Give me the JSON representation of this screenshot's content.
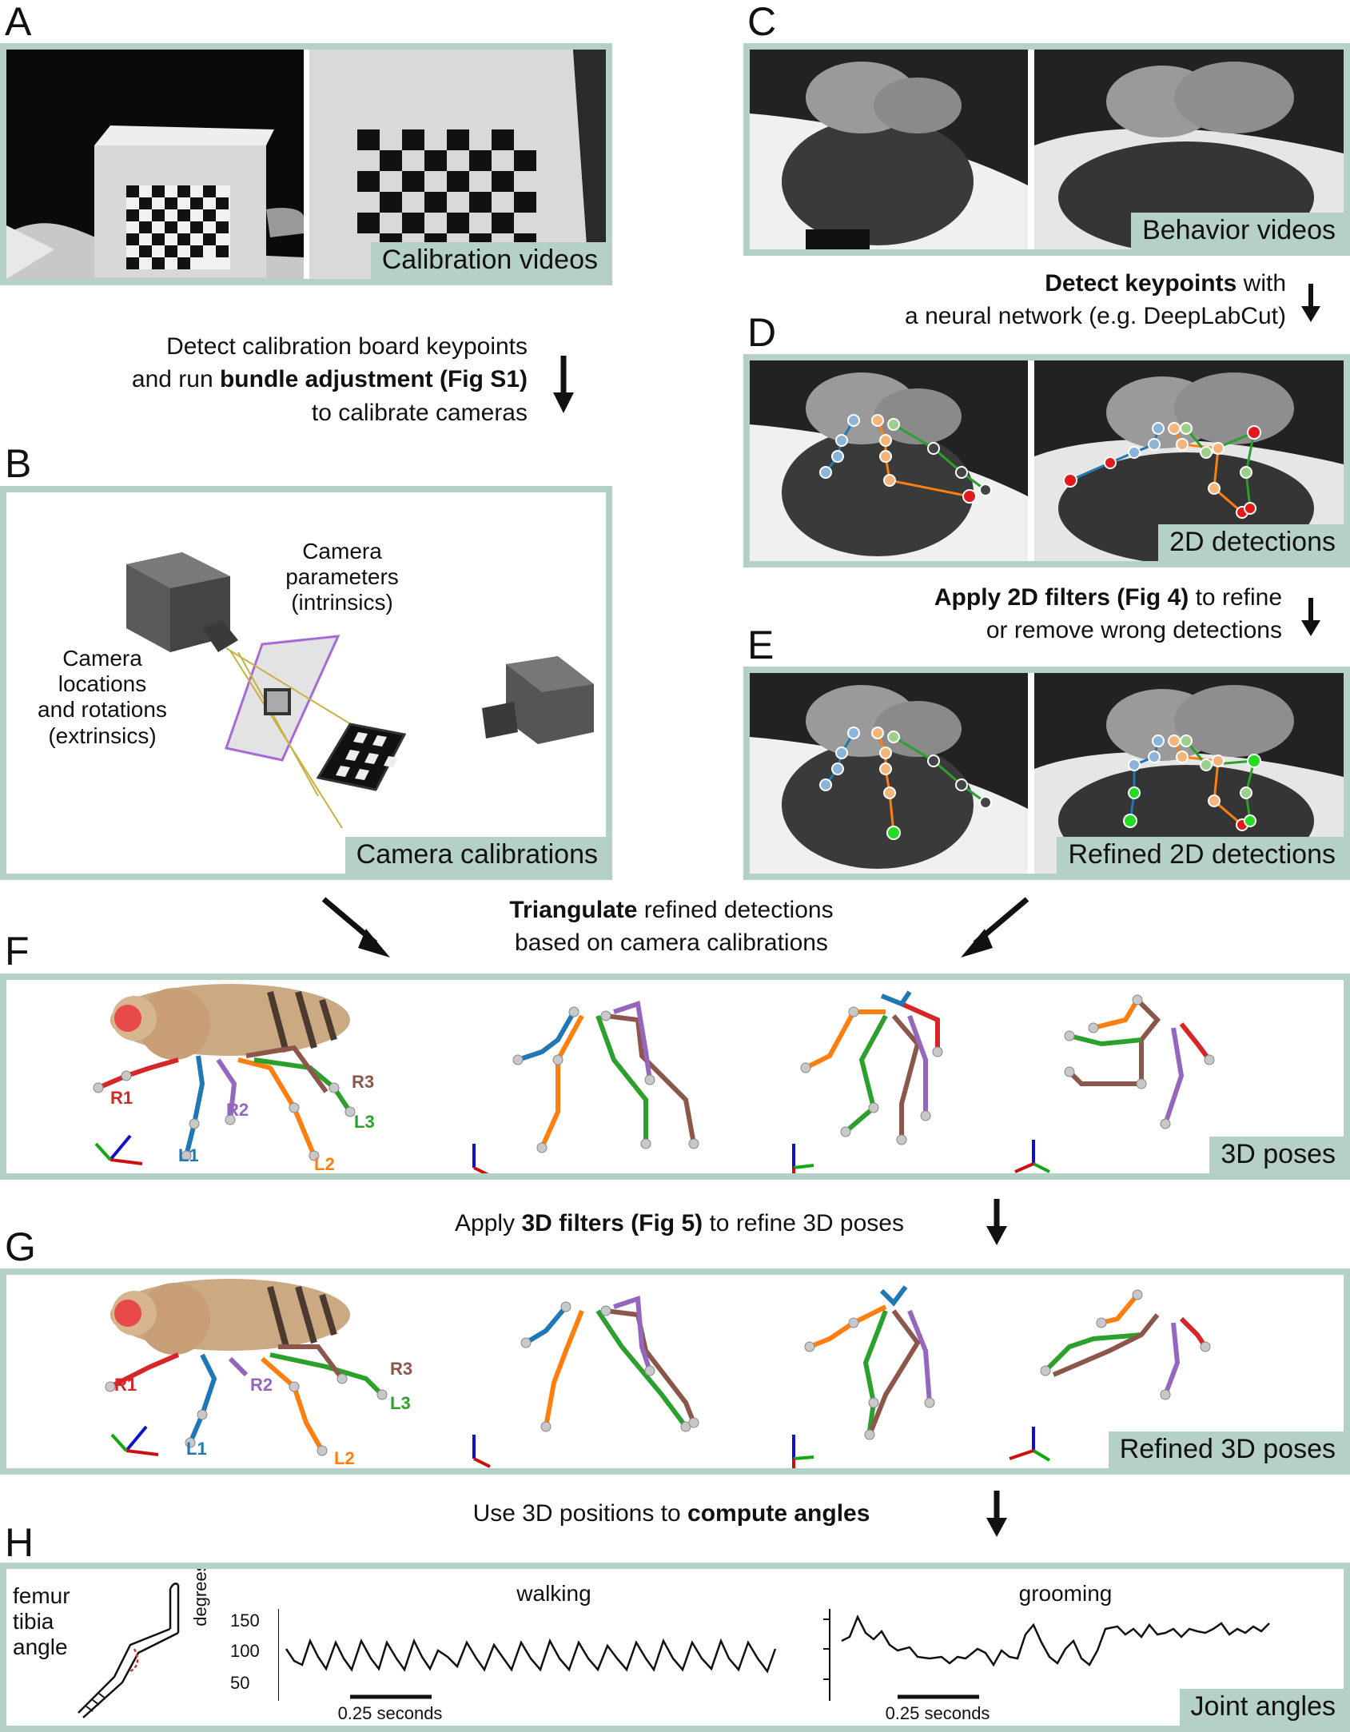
{
  "panels": {
    "A": {
      "letter": "A",
      "tag": "Calibration videos"
    },
    "B": {
      "letter": "B",
      "tag": "Camera calibrations",
      "cam_params": "Camera parameters (intrinsics)",
      "cam_params_l1": "Camera",
      "cam_params_l2": "parameters",
      "cam_params_l3": "(intrinsics)",
      "cam_loc_l1": "Camera",
      "cam_loc_l2": "locations",
      "cam_loc_l3": "and rotations",
      "cam_loc_l4": "(extrinsics)"
    },
    "C": {
      "letter": "C",
      "tag": "Behavior videos"
    },
    "D": {
      "letter": "D",
      "tag": "2D detections"
    },
    "E": {
      "letter": "E",
      "tag": "Refined 2D detections"
    },
    "F": {
      "letter": "F",
      "tag": "3D poses"
    },
    "G": {
      "letter": "G",
      "tag": "Refined 3D poses"
    },
    "H": {
      "letter": "H",
      "tag": "Joint angles"
    }
  },
  "steps": {
    "calib_l1": "Detect calibration board keypoints",
    "calib_l2_pre": "and run ",
    "calib_l2_bold": "bundle adjustment (Fig S1)",
    "calib_l3": "to calibrate cameras",
    "detect_bold": "Detect keypoints",
    "detect_l1_post": " with",
    "detect_l2": "a neural network (e.g. DeepLabCut)",
    "filter2d_bold": "Apply 2D filters (Fig 4)",
    "filter2d_l1_post": "  to refine",
    "filter2d_l2": "or remove wrong detections",
    "tri_bold": "Triangulate",
    "tri_l1_post": " refined detections",
    "tri_l2": "based on camera calibrations",
    "filter3d_pre": "Apply ",
    "filter3d_bold": "3D filters (Fig 5)",
    "filter3d_post": " to refine 3D poses",
    "angles_pre": "Use 3D positions to ",
    "angles_bold": "compute angles"
  },
  "legs": {
    "R1": "R1",
    "R2": "R2",
    "R3": "R3",
    "L1": "L1",
    "L2": "L2",
    "L3": "L3"
  },
  "angle_panel": {
    "label_l1": "femur",
    "label_l2": "tibia",
    "label_l3": "angle",
    "walking": "walking",
    "grooming": "grooming",
    "ylabel": "degrees",
    "yticks": [
      "150",
      "100",
      "50"
    ],
    "scalebar": "0.25 seconds"
  },
  "colors": {
    "panel_border": "#b5d0c7",
    "R1": "#d62728",
    "R2": "#9467bd",
    "R3": "#8c564b",
    "L1": "#1f77b4",
    "L2": "#ff7f0e",
    "L3": "#2ca02c"
  }
}
